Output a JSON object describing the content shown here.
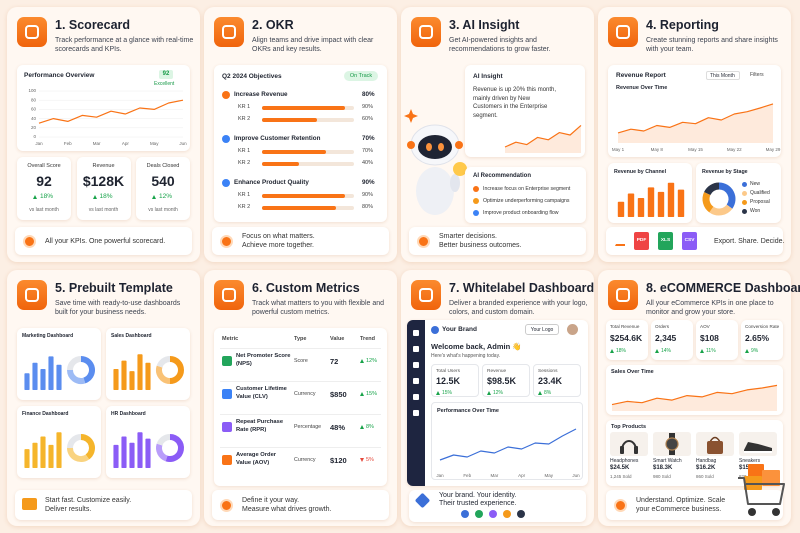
{
  "cards": [
    {
      "title": "1. Scorecard",
      "description": "Track performance at a glance with real-time scorecards and KPIs.",
      "chart": {
        "type": "line",
        "title": "Performance Overview",
        "badge": 92,
        "badge_label": "Excellent",
        "categories": [
          "Jan",
          null,
          "Feb",
          null,
          "Mar",
          null,
          "Apr",
          null,
          "May",
          null,
          "Jun"
        ],
        "values": [
          30,
          40,
          34,
          47,
          43,
          56,
          50,
          63,
          60,
          74,
          80
        ],
        "ylim": [
          0,
          100
        ],
        "yticks": [
          0,
          20,
          40,
          60,
          80,
          100
        ],
        "color": "#f97316"
      },
      "kpis": [
        {
          "label": "Overall Score",
          "value": 92,
          "change": "18%",
          "note": "vs last month"
        },
        {
          "label": "Revenue",
          "value": "$128K",
          "change": "18%",
          "note": "vs last month"
        },
        {
          "label": "Deals Closed",
          "value": 540,
          "change": "12%",
          "note": "vs last month"
        }
      ],
      "footer": [
        "All your KPIs. One powerful scorecard."
      ]
    },
    {
      "title": "2. OKR",
      "description": "Align teams and drive impact with clear OKRs and key results.",
      "panel_title": "Q2 2024 Objectives",
      "status": "On Track",
      "objectives": [
        {
          "name": "Increase Revenue",
          "color": "#f97316",
          "progress": {
            "value": 80,
            "label": "80%"
          },
          "key_results": [
            {
              "name": "KR 1",
              "progress": {
                "value": 90,
                "label": "90%"
              }
            },
            {
              "name": "KR 2",
              "progress": {
                "value": 60,
                "label": "60%"
              }
            }
          ]
        },
        {
          "name": "Improve Customer Retention",
          "color": "#3b82f6",
          "progress": {
            "value": 70,
            "label": "70%"
          },
          "key_results": [
            {
              "name": "KR 1",
              "progress": {
                "value": 70,
                "label": "70%"
              }
            },
            {
              "name": "KR 2",
              "progress": {
                "value": 40,
                "label": "40%"
              }
            }
          ]
        },
        {
          "name": "Enhance Product Quality",
          "color": "#3b82f6",
          "progress": {
            "value": 90,
            "label": "90%"
          },
          "key_results": [
            {
              "name": "KR 1",
              "progress": {
                "value": 90,
                "label": "90%"
              }
            },
            {
              "name": "KR 2",
              "progress": {
                "value": 80,
                "label": "80%"
              }
            }
          ]
        }
      ],
      "footer": [
        "Focus on what matters.",
        "Achieve more together."
      ]
    },
    {
      "title": "3. AI Insight",
      "description": "Get AI-powered insights and recommendations to grow faster.",
      "insight_title": "AI Insight",
      "insight": "Revenue is up 20% this month, mainly driven by New Customers in the Enterprise segment.",
      "sparkline": {
        "type": "area",
        "values": [
          10,
          18,
          14,
          26,
          22,
          34,
          30,
          46
        ],
        "ylim": [
          0,
          50
        ],
        "color": "#f97316"
      },
      "recommendation_title": "AI Recommendation",
      "recommendations": [
        "Increase focus on Enterprise segment",
        "Optimize underperforming campaigns",
        "Improve product onboarding flow"
      ],
      "footer": [
        "Smarter decisions.",
        "Better business outcomes."
      ]
    },
    {
      "title": "4. Reporting",
      "description": "Create stunning reports and share insights with your team.",
      "report_title": "Revenue Report",
      "period": "This Month",
      "filters": "Filters",
      "revenue_chart": {
        "type": "area",
        "title": "Revenue Over Time",
        "categories": [
          "May 1",
          null,
          null,
          "May 8",
          null,
          null,
          "May 15",
          null,
          null,
          "May 22",
          null,
          null,
          "May 29"
        ],
        "values": [
          22,
          30,
          26,
          38,
          34,
          45,
          42,
          55,
          50,
          63,
          68,
          76,
          85
        ],
        "ylim": [
          0,
          100
        ],
        "color": "#f97316"
      },
      "channel_chart": {
        "type": "bar",
        "title": "Revenue by Channel",
        "values": [
          40,
          62,
          50,
          78,
          66,
          90,
          72
        ],
        "ylim": [
          0,
          100
        ],
        "color": "#f97316"
      },
      "stage_chart": {
        "type": "donut",
        "title": "Revenue by Stage",
        "series": [
          {
            "name": "New",
            "value": 35,
            "color": "#3b6fd8"
          },
          {
            "name": "Qualified",
            "value": 25,
            "color": "#fcc98a"
          },
          {
            "name": "Proposal",
            "value": 22,
            "color": "#f59a1b"
          },
          {
            "name": "Won",
            "value": 18,
            "color": "#2b3448"
          }
        ]
      },
      "exports": [
        {
          "label": "PDF",
          "color": "#ef4444"
        },
        {
          "label": "XLS",
          "color": "#22a55b"
        },
        {
          "label": "CSV",
          "color": "#8b5cf6"
        }
      ],
      "footer": [
        "Export. Share. Decide."
      ]
    },
    {
      "title": "5. Prebuilt Template",
      "description": "Save time with ready-to-use dashboards built for your business needs.",
      "templates": [
        {
          "name": "Marketing Dashboard",
          "color": "#5b8def",
          "bars": [
            40,
            65,
            50,
            80,
            60
          ],
          "donut": [
            45,
            30,
            25
          ],
          "ylim": [
            0,
            100
          ]
        },
        {
          "name": "Sales Dashboard",
          "color": "#f59a1b",
          "bars": [
            50,
            70,
            45,
            85,
            65
          ],
          "donut": [
            50,
            30,
            20
          ],
          "ylim": [
            0,
            100
          ]
        },
        {
          "name": "Finance Dashboard",
          "color": "#f5b52b",
          "bars": [
            45,
            60,
            75,
            55,
            85
          ],
          "donut": [
            40,
            35,
            25
          ],
          "ylim": [
            0,
            100
          ]
        },
        {
          "name": "HR Dashboard",
          "color": "#8b5cf6",
          "bars": [
            55,
            75,
            60,
            85,
            70
          ],
          "donut": [
            55,
            25,
            20
          ],
          "ylim": [
            0,
            100
          ]
        }
      ],
      "footer": [
        "Start fast. Customize easily.",
        "Deliver results."
      ]
    },
    {
      "title": "6. Custom Metrics",
      "description": "Track what matters to you with flexible and powerful custom metrics.",
      "table": {
        "header": [
          "Metric",
          "Type",
          "Value",
          "Trend"
        ],
        "rows": [
          {
            "metric": "Net Promoter Score (NPS)",
            "type": "Score",
            "value": 72,
            "trend": "12%",
            "trend_up": true,
            "color": "#22a55b"
          },
          {
            "metric": "Customer Lifetime Value (CLV)",
            "type": "Currency",
            "value": "$850",
            "trend": "15%",
            "trend_up": true,
            "color": "#3b82f6"
          },
          {
            "metric": "Repeat Purchase Rate (RPR)",
            "type": "Percentage",
            "value": "48%",
            "trend": "8%",
            "trend_up": true,
            "color": "#8b5cf6"
          },
          {
            "metric": "Average Order Value (AOV)",
            "type": "Currency",
            "value": "$120",
            "trend": "5%",
            "trend_up": false,
            "color": "#f97316"
          }
        ]
      },
      "footer": [
        "Define it your way.",
        "Measure what drives growth."
      ]
    },
    {
      "title": "7. Whitelabel Dashboard",
      "description": "Deliver a branded experience with your logo, colors, and custom domain.",
      "brand": "Your Brand",
      "logo": "Your Logo",
      "welcome": "Welcome back, Admin 👋",
      "welcome_sub": "Here's what's happening today.",
      "stats": [
        {
          "label": "Total Users",
          "value": "12.5K",
          "change": "15%"
        },
        {
          "label": "Revenue",
          "value": "$98.5K",
          "change": "12%"
        },
        {
          "label": "Sessions",
          "value": "23.4K",
          "change": "8%"
        }
      ],
      "chart": {
        "type": "line",
        "title": "Performance Over Time",
        "categories": [
          "Jan",
          null,
          "Feb",
          null,
          "Mar",
          null,
          "Apr",
          null,
          "May",
          null,
          "Jun"
        ],
        "values": [
          18,
          28,
          24,
          36,
          32,
          44,
          40,
          52,
          50,
          66,
          80
        ],
        "ylim": [
          0,
          100
        ],
        "color": "#3b6fd8"
      },
      "footer": [
        "Your brand. Your identity.",
        "Their trusted experience."
      ],
      "palette": [
        "#3b6fd8",
        "#22a55b",
        "#8b5cf6",
        "#f59a1b",
        "#2b3448"
      ]
    },
    {
      "title": "8. eCOMMERCE Dashboard",
      "description": "All your eCommerce KPIs in one place to monitor and grow your store.",
      "kpis": [
        {
          "label": "Total Revenue",
          "value": "$254.6K",
          "change": "18%"
        },
        {
          "label": "Orders",
          "value": "2,345",
          "change": "14%"
        },
        {
          "label": "AOV",
          "value": "$108",
          "change": "11%"
        },
        {
          "label": "Conversion Rate",
          "value": "2.65%",
          "change": "9%"
        }
      ],
      "chart": {
        "type": "area",
        "title": "Sales Over Time",
        "values": [
          20,
          30,
          26,
          40,
          34,
          48,
          44,
          58,
          54,
          66,
          72,
          80
        ],
        "ylim": [
          0,
          100
        ],
        "color": "#f97316"
      },
      "products_title": "Top Products",
      "products": [
        {
          "name": "Headphones",
          "revenue": "$24.5K",
          "sold": "1,245 Sold"
        },
        {
          "name": "Smart Watch",
          "revenue": "$18.3K",
          "sold": "980 Sold"
        },
        {
          "name": "Handbag",
          "revenue": "$16.2K",
          "sold": "860 Sold"
        },
        {
          "name": "Sneakers",
          "revenue": "$15.4K",
          "sold": "820 Sold"
        }
      ],
      "footer": [
        "Understand. Optimize. Scale",
        "your eCommerce business."
      ]
    }
  ]
}
